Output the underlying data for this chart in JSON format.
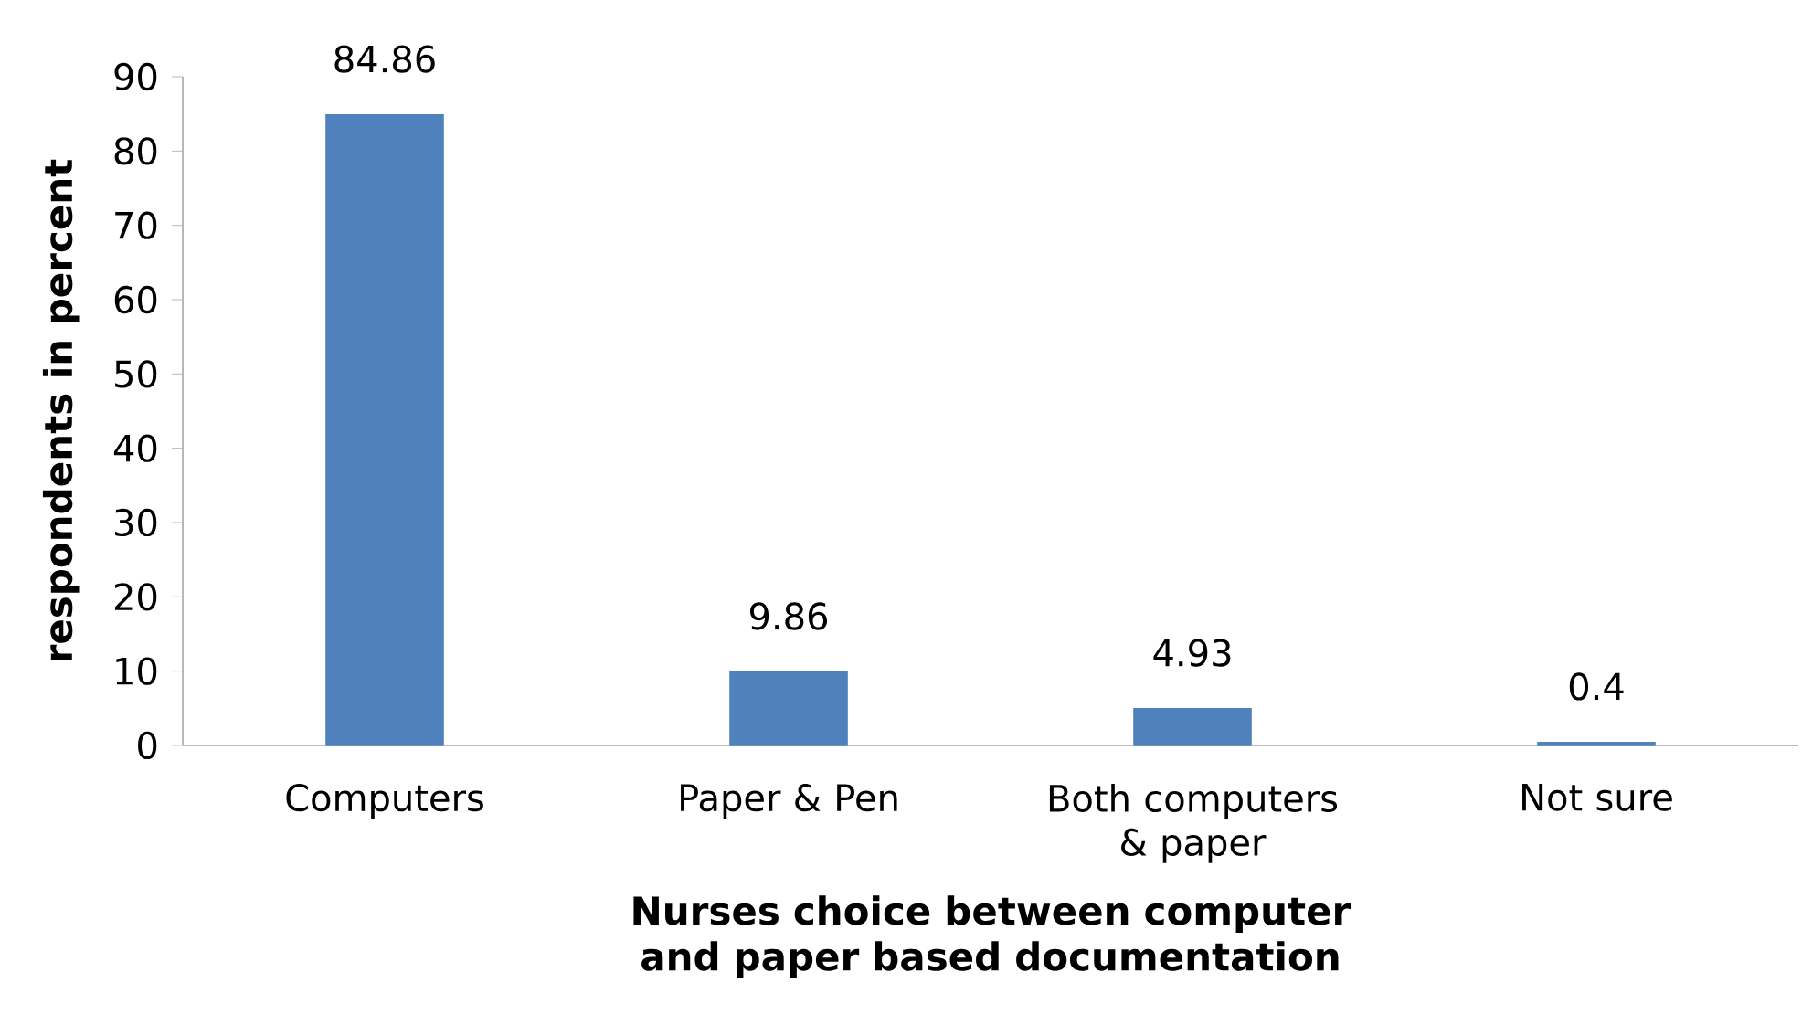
{
  "chart_data": {
    "type": "bar",
    "categories": [
      "Computers",
      "Paper & Pen",
      "Both computers & paper",
      "Not sure"
    ],
    "values": [
      84.86,
      9.86,
      4.93,
      0.4
    ],
    "color": "#4f81bd",
    "xlabel": "Nurses choice between computer and paper based documentation",
    "ylabel": "respondents in percent",
    "ylim": [
      0,
      90
    ],
    "yticks": [
      0,
      10,
      20,
      30,
      40,
      50,
      60,
      70,
      80,
      90
    ],
    "data_labels": true
  }
}
